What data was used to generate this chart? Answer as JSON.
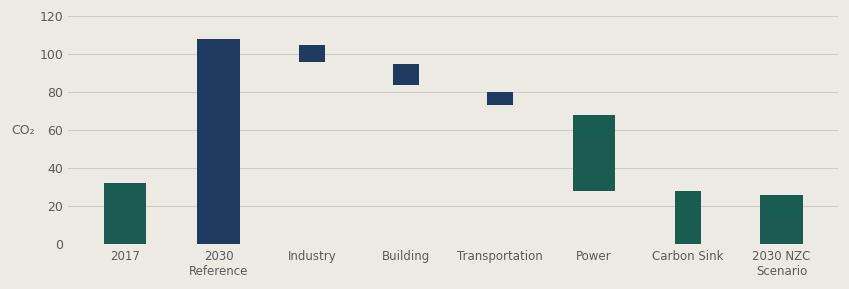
{
  "categories": [
    "2017",
    "2030\nReference",
    "Industry",
    "Building",
    "Transportation",
    "Power",
    "Carbon Sink",
    "2030 NZC\nScenario"
  ],
  "bar_bottoms": [
    0,
    0,
    96,
    84,
    73,
    28,
    0,
    0
  ],
  "bar_tops": [
    32,
    108,
    105,
    95,
    80,
    68,
    28,
    26
  ],
  "bar_colors": [
    "#1a5c52",
    "#1e3a5f",
    "#1e3a5f",
    "#1e3a5f",
    "#1e3a5f",
    "#1a5c52",
    "#1a5c52",
    "#1a5c52"
  ],
  "bar_widths": [
    0.45,
    0.45,
    0.28,
    0.28,
    0.28,
    0.45,
    0.28,
    0.45
  ],
  "ylim": [
    0,
    120
  ],
  "yticks": [
    0,
    20,
    40,
    60,
    80,
    100,
    120
  ],
  "ylabel": "CO₂",
  "background_color": "#edeae4",
  "gridline_color": "#d0cdc7",
  "tick_label_color": "#5a5a5a",
  "xlabel_fontsize": 8.5,
  "ylabel_fontsize": 9,
  "ytick_fontsize": 9
}
